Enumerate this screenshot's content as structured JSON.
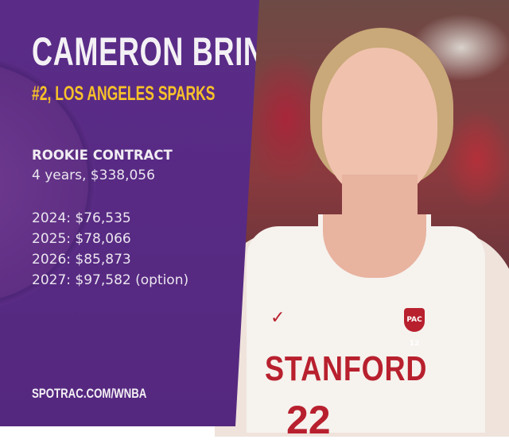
{
  "player": {
    "name": "CAMERON BRINK",
    "pick_team": "#2, LOS ANGELES SPARKS"
  },
  "contract": {
    "heading": "ROOKIE CONTRACT",
    "summary": "4 years, $338,056",
    "years": [
      "2024: $76,535",
      "2025: $78,066",
      "2026: $85,873",
      "2027: $97,582 (option)"
    ]
  },
  "jersey": {
    "text": "STANFORD",
    "number": "22",
    "conference_badge": "PAC 12"
  },
  "footer": {
    "site": "SPOTRAC.COM/WNBA"
  },
  "colors": {
    "panel": "#5a2c88",
    "accent": "#f7c12a",
    "jersey_red": "#b8202e"
  },
  "icons": [
    "nike-swoosh-icon",
    "pac12-logo"
  ]
}
